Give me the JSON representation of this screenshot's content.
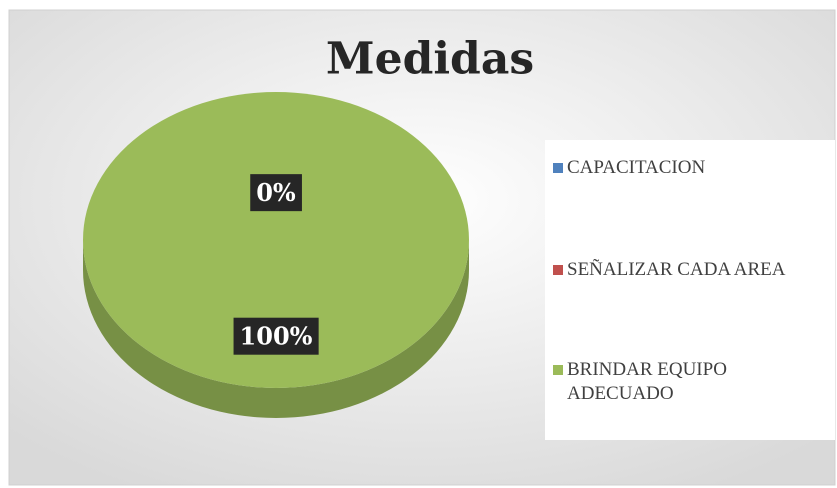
{
  "chart_data": {
    "type": "pie",
    "title": "Medidas",
    "categories": [
      "CAPACITACION",
      "SEÑALIZAR CADA AREA",
      "BRINDAR EQUIPO ADECUADO"
    ],
    "values": [
      0,
      0,
      100
    ],
    "value_labels": [
      "0%",
      null,
      "100%"
    ],
    "colors": [
      "#4f81bd",
      "#c0504d",
      "#9bbb59"
    ],
    "legend": "right"
  }
}
